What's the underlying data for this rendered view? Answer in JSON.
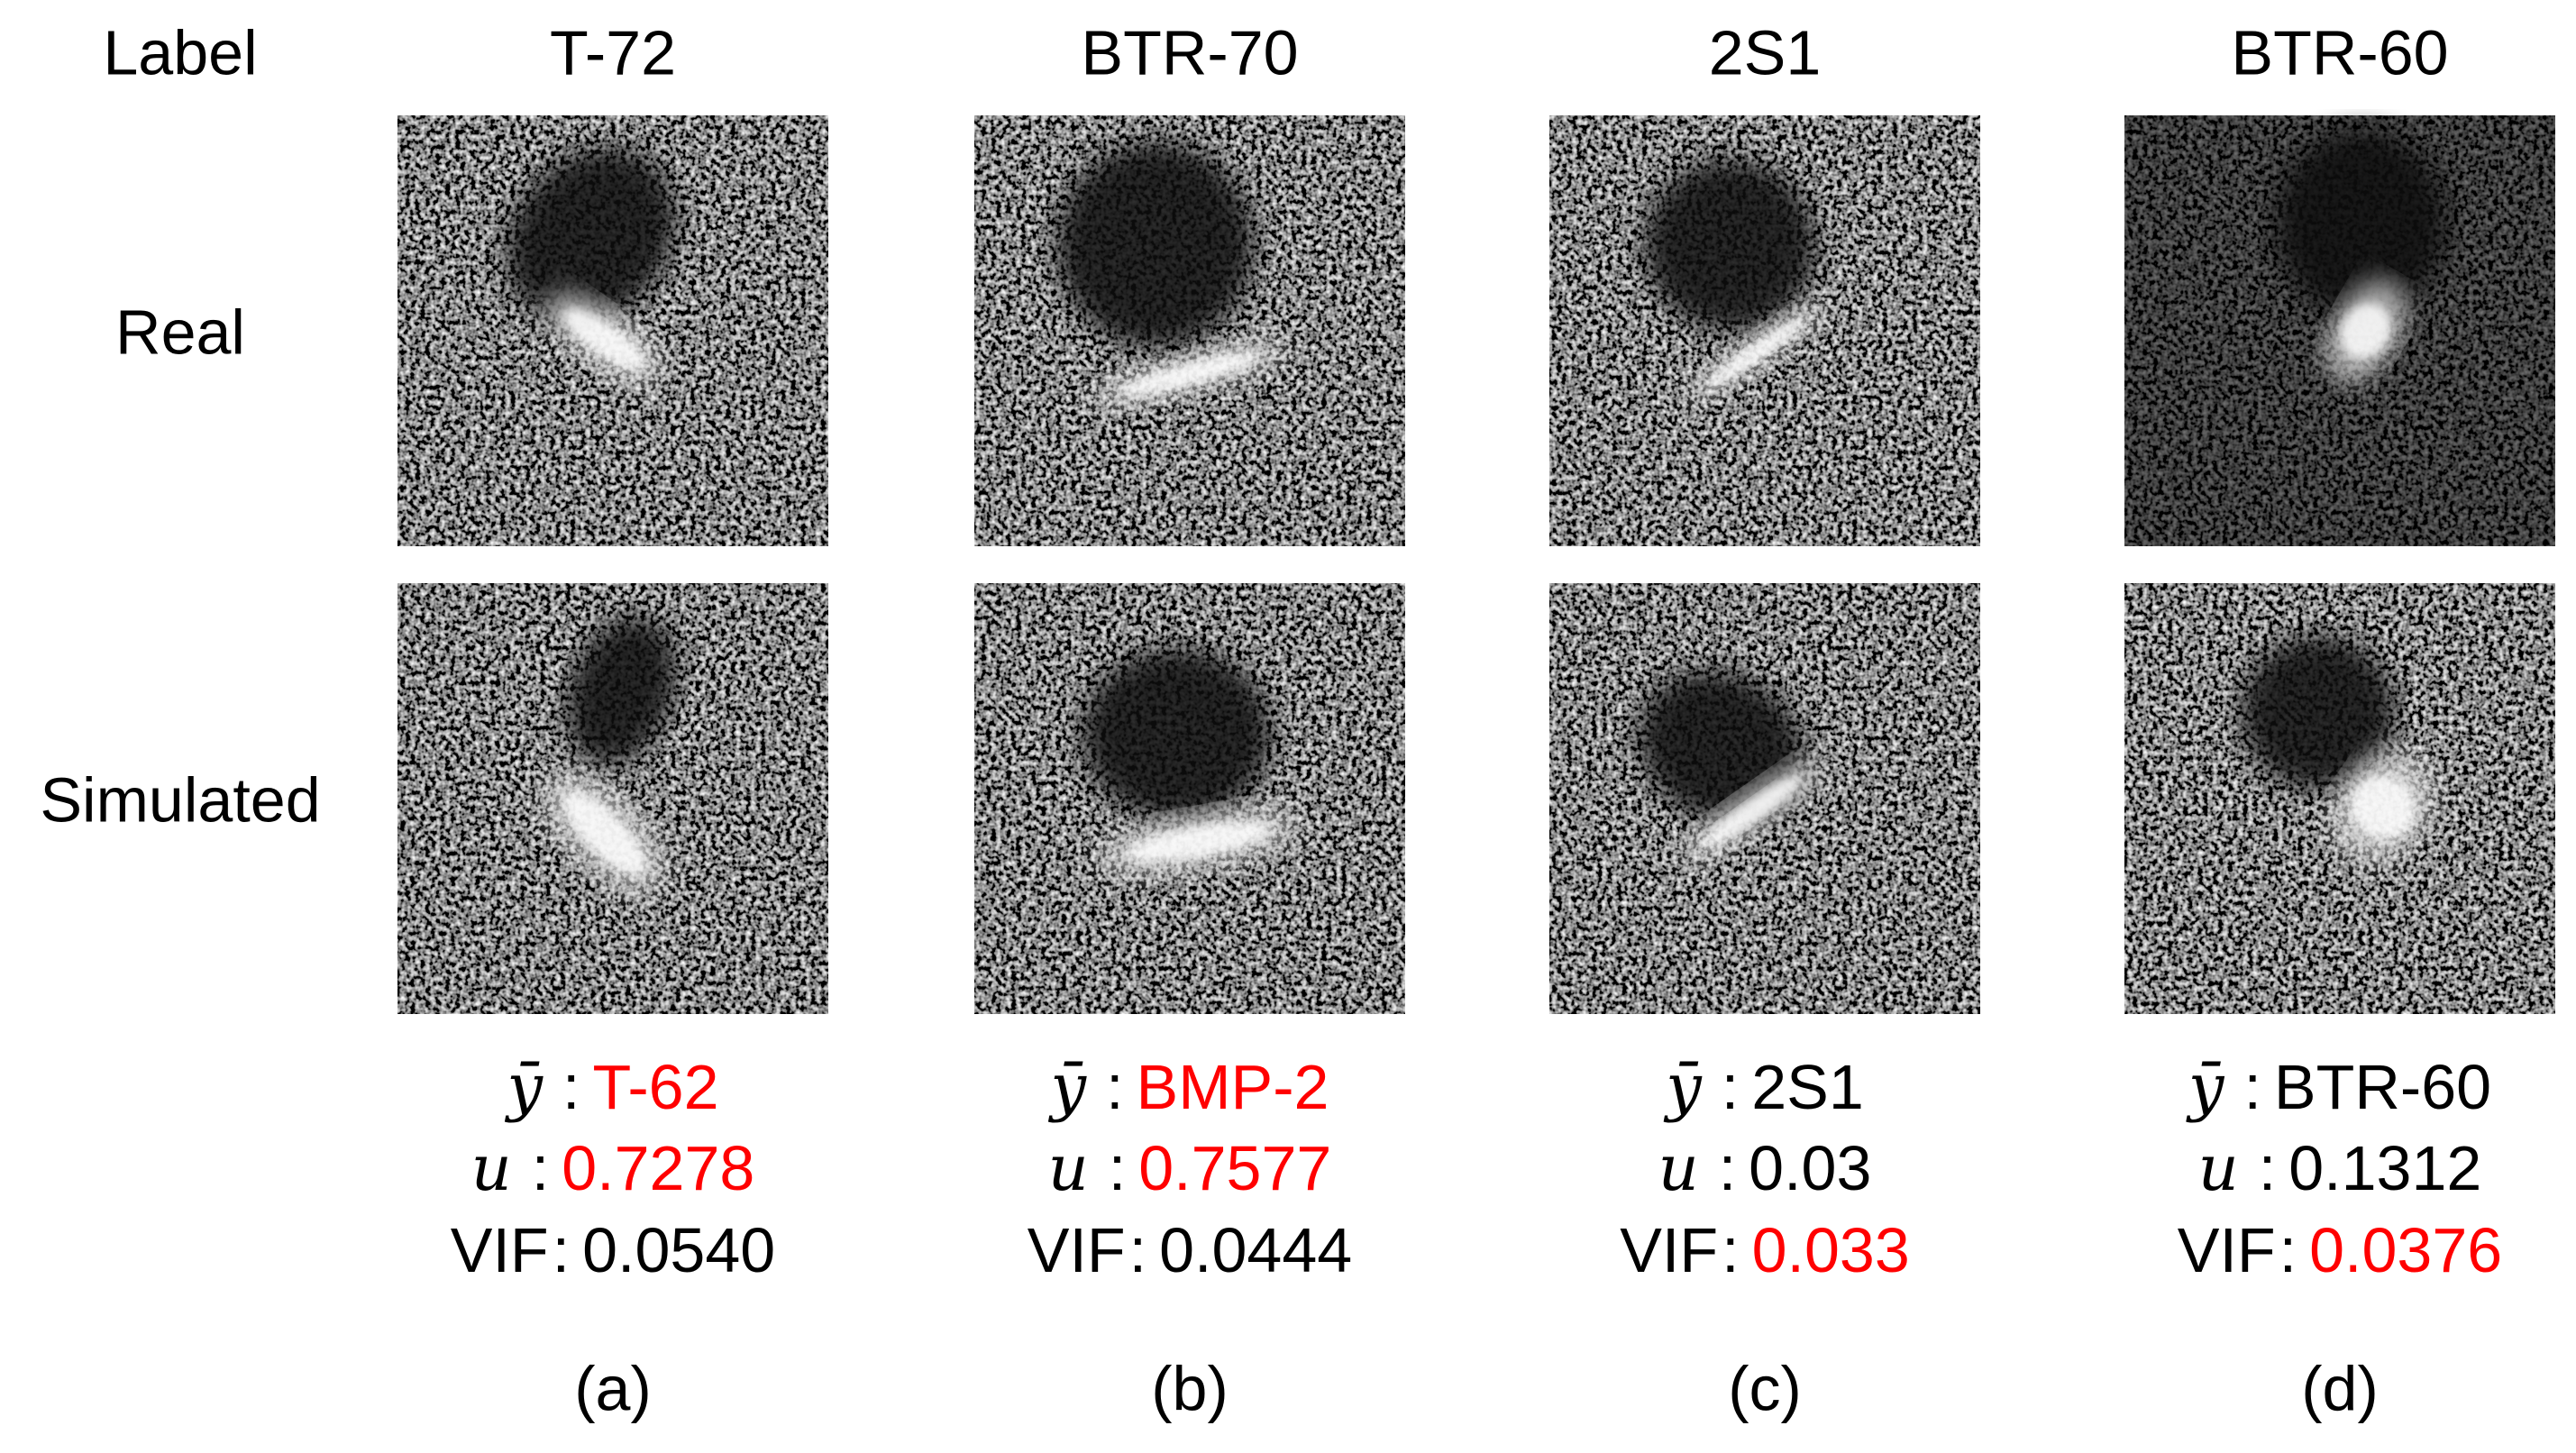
{
  "header_label": "Label",
  "row_labels": [
    "Real",
    "Simulated"
  ],
  "highlight_color": "#ff0000",
  "columns": [
    {
      "label": "T-72",
      "prediction": {
        "symbol": "ȳ",
        "separator": ":",
        "value": "T-62",
        "highlight": true
      },
      "uncertainty": {
        "symbol": "u",
        "separator": ":",
        "value": "0.7278",
        "highlight": true
      },
      "vif": {
        "symbol": "VIF",
        "separator": ":",
        "value": "0.0540",
        "highlight": false
      },
      "caption": "(a)"
    },
    {
      "label": "BTR-70",
      "prediction": {
        "symbol": "ȳ",
        "separator": ":",
        "value": "BMP-2",
        "highlight": true
      },
      "uncertainty": {
        "symbol": "u",
        "separator": ":",
        "value": "0.7577",
        "highlight": true
      },
      "vif": {
        "symbol": "VIF",
        "separator": ":",
        "value": "0.0444",
        "highlight": false
      },
      "caption": "(b)"
    },
    {
      "label": "2S1",
      "prediction": {
        "symbol": "ȳ",
        "separator": ":",
        "value": "2S1",
        "highlight": false
      },
      "uncertainty": {
        "symbol": "u",
        "separator": ":",
        "value": "0.03",
        "highlight": false
      },
      "vif": {
        "symbol": "VIF",
        "separator": ":",
        "value": "0.033",
        "highlight": true
      },
      "caption": "(c)"
    },
    {
      "label": "BTR-60",
      "prediction": {
        "symbol": "ȳ",
        "separator": ":",
        "value": "BTR-60",
        "highlight": false
      },
      "uncertainty": {
        "symbol": "u",
        "separator": ":",
        "value": "0.1312",
        "highlight": false
      },
      "vif": {
        "symbol": "VIF",
        "separator": ":",
        "value": "0.0376",
        "highlight": true
      },
      "caption": "(d)"
    }
  ]
}
